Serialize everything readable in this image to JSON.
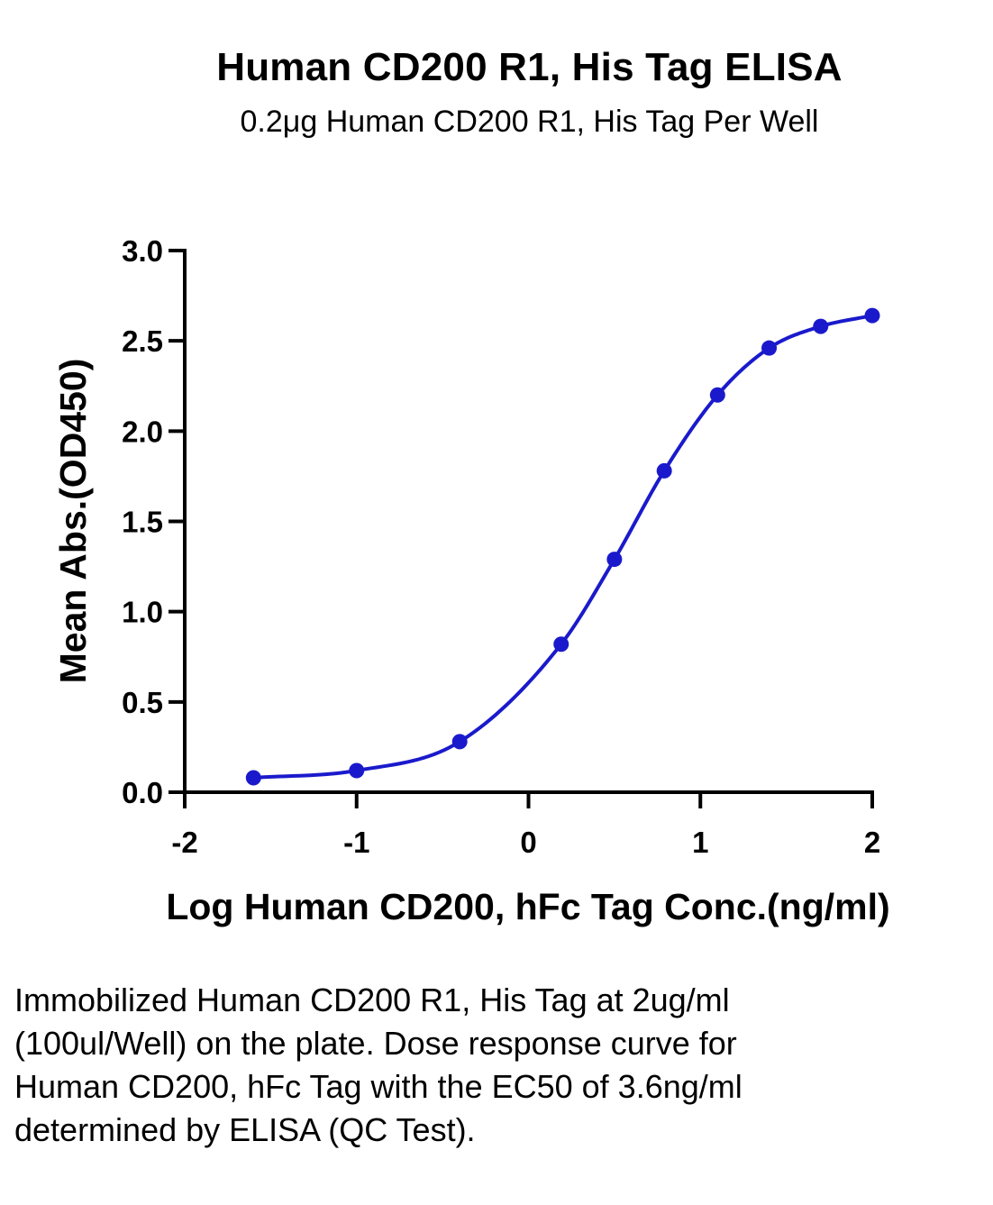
{
  "chart_data": {
    "type": "scatter",
    "title": "Human CD200 R1, His Tag ELISA",
    "subtitle": "0.2μg Human CD200 R1, His Tag Per Well",
    "xlabel": "Log Human CD200, hFc Tag Conc.(ng/ml)",
    "ylabel": "Mean Abs.(OD450)",
    "xlim": [
      -2,
      2
    ],
    "ylim": [
      0,
      3
    ],
    "x_ticks": [
      "-2",
      "-1",
      "0",
      "1",
      "2"
    ],
    "y_ticks": [
      "0.0",
      "0.5",
      "1.0",
      "1.5",
      "2.0",
      "2.5",
      "3.0"
    ],
    "series": [
      {
        "x": [
          -1.6,
          -1.0,
          -0.4,
          0.19,
          0.5,
          0.79,
          1.1,
          1.4,
          1.7,
          2.0
        ],
        "y": [
          0.08,
          0.12,
          0.28,
          0.82,
          1.29,
          1.78,
          2.2,
          2.46,
          2.58,
          2.64
        ],
        "color": "#1a1acc"
      }
    ],
    "fit_curve": true,
    "grid": false
  },
  "caption": "Immobilized Human CD200 R1, His Tag at 2ug/ml (100ul/Well) on the plate. Dose response curve for Human CD200, hFc Tag with the EC50 of 3.6ng/ml determined by ELISA (QC Test)."
}
